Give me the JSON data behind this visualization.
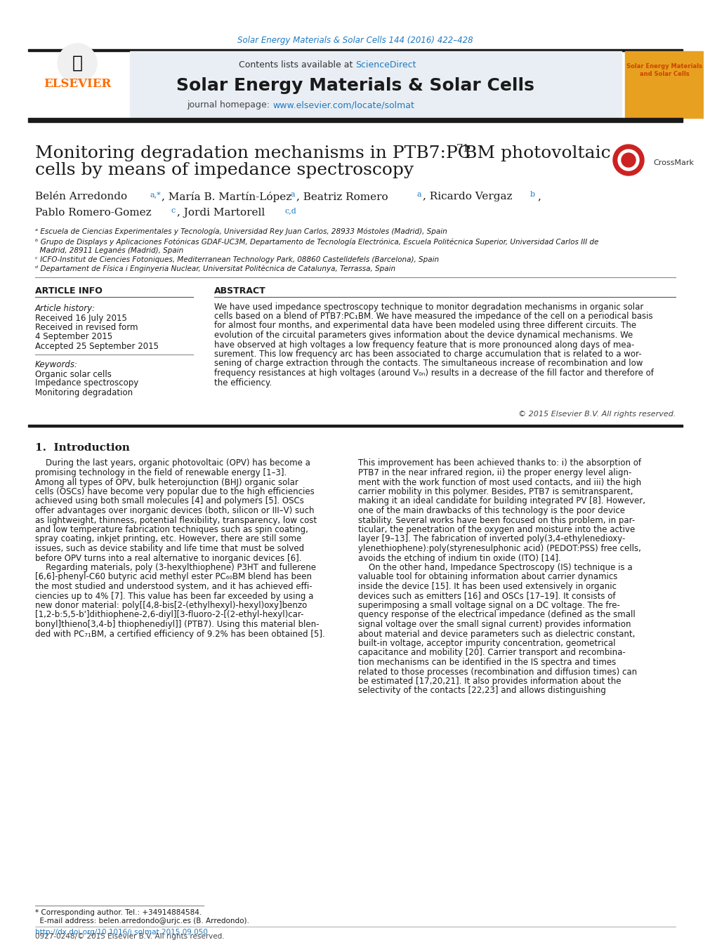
{
  "page_title": "Solar Energy Materials & Solar Cells 144 (2016) 422–428",
  "journal_name": "Solar Energy Materials & Solar Cells",
  "journal_homepage": "journal homepage: www.elsevier.com/locate/solmat",
  "contents_available": "Contents lists available at ScienceDirect",
  "paper_title_line1": "Monitoring degradation mechanisms in PTB7:PC",
  "paper_title_sub": "71",
  "paper_title_line1b": "BM photovoltaic",
  "paper_title_line2": "cells by means of impedance spectroscopy",
  "authors": "Belén Arredondo ᵃ,*, María B. Martín-López ᵃ, Beatriz Romero ᵃ, Ricardo Vergaz ᵇ,",
  "authors2": "Pablo Romero-Gomez ᶜ, Jordi Martorell ᶜ,ᵈ",
  "affil_a": "ᵃ Escuela de Ciencias Experimentales y Tecnología, Universidad Rey Juan Carlos, 28933 Móstoles (Madrid), Spain",
  "affil_b": "ᵇ Grupo de Displays y Aplicaciones Fotónicas GDAF-UC3M, Departamento de Tecnología Electrónica, Escuela Politécnica Superior, Universidad Carlos III de",
  "affil_b2": "  Madrid, 28911 Leganés (Madrid), Spain",
  "affil_c": "ᶜ ICFO-Institut de Ciencies Fotoniques, Mediterranean Technology Park, 08860 Castelldefels (Barcelona), Spain",
  "affil_d": "ᵈ Departament de Física i Enginyeria Nuclear, Universitat Politècnica de Catalunya, Terrassa, Spain",
  "article_info_header": "ARTICLE INFO",
  "abstract_header": "ABSTRACT",
  "article_history_label": "Article history:",
  "received1": "Received 16 July 2015",
  "received2": "Received in revised form",
  "received3": "4 September 2015",
  "accepted": "Accepted 25 September 2015",
  "keywords_label": "Keywords:",
  "keyword1": "Organic solar cells",
  "keyword2": "Impedance spectroscopy",
  "keyword3": "Monitoring degradation",
  "abstract_text": "We have used impedance spectroscopy technique to monitor degradation mechanisms in organic solar cells based on a blend of PTB7:PC₁BM. We have measured the impedance of the cell on a periodical basis for almost four months, and experimental data have been modeled using three different circuits. The evolution of the circuital parameters gives information about the device dynamical mechanisms. We have observed at high voltages a low frequency feature that is more pronounced along days of measurement. This low frequency arc has been associated to charge accumulation that is related to a worsening of charge extraction through the contacts. The simultaneous increase of recombination and low frequency resistances at high voltages (around V₀ₙ) results in a decrease of the fill factor and therefore of the efficiency.",
  "copyright": "© 2015 Elsevier B.V. All rights reserved.",
  "intro_header": "1.  Introduction",
  "intro_left": "    During the last years, organic photovoltaic (OPV) has become a promising technology in the field of renewable energy [1–3]. Among all types of OPV, bulk heterojunction (BHJ) organic solar cells (OSCs) have become very popular due to the high efficiencies achieved using both small molecules [4] and polymers [5]. OSCs offer advantages over inorganic devices (both, silicon or III–V) such as lightweight, thinness, potential flexibility, transparency, low cost and low temperature fabrication techniques such as spin coating, spray coating, inkjet printing, etc. However, there are still some issues, such as device stability and life time that must be solved before OPV turns into a real alternative to inorganic devices [6].\n    Regarding materials, poly (3-hexylthiophene) P3HT and fullerene [6,6]-phenyl-C60 butyric acid methyl ester PC₆₀BM blend has been the most studied and understood system, and it has achieved efficiencies up to 4% [7]. This value has been far exceeded by using a new donor material: poly[[4,8-bis[2-(ethylhexyl)-hexyl)oxy]benzo [1,2-b:5,5-b']dithiophene-2,6-diyl][3-fluoro-2-[(2-ethyl-hexyl)carbonyl]thieno[3,4-b] thiophenediyl]] (PTB7). Using this material blended with PC₇₁BM, a certified efficiency of 9.2% has been obtained [5].",
  "intro_right": "This improvement has been achieved thanks to: i) the absorption of PTB7 in the near infrared region, ii) the proper energy level alignment with the work function of most used contacts, and iii) the high carrier mobility in this polymer. Besides, PTB7 is semitransparent, making it an ideal candidate for building integrated PV [8]. However, one of the main drawbacks of this technology is the poor device stability. Several works have been focused on this problem, in particular, the penetration of the oxygen and moisture into the active layer [9–13]. The fabrication of inverted poly(3,4-ethylenedioxylenethiophene):poly(styrenesulphonic acid) (PEDOT:PSS) free cells, avoids the etching of indium tin oxide (ITO) [14].\n    On the other hand, Impedance Spectroscopy (IS) technique is a valuable tool for obtaining information about carrier dynamics inside the device [15]. It has been used extensively in organic devices such as emitters [16] and OSCs [17–19]. It consists of superimposing a small voltage signal on a DC voltage. The frequency response of the electrical impedance (defined as the small signal voltage over the small signal current) provides information about material and device parameters such as dielectric constant, built-in voltage, acceptor impurity concentration, geometrical capacitance and mobility [20]. Carrier transport and recombination mechanisms can be identified in the IS spectra and times related to those processes (recombination and diffusion times) can be estimated [17,20,21]. It also provides information about the selectivity of the contacts [22,23] and allows distinguishing",
  "footer_left": "* Corresponding author. Tel.: +34914884584.",
  "footer_email": "  E-mail address: belen.arredondo@urjc.es (B. Arredondo).",
  "footer_doi": "http://dx.doi.org/10.1016/j.solmat.2015.09.050",
  "footer_issn": "0927-0248/© 2015 Elsevier B.V. All rights reserved.",
  "elsevier_color": "#FF6B00",
  "sciencedirect_color": "#FF6B00",
  "link_color": "#1F7AC0",
  "header_bg_color": "#E8EEF4",
  "thick_bar_color": "#1A1A1A",
  "title_color": "#1A1A1A"
}
